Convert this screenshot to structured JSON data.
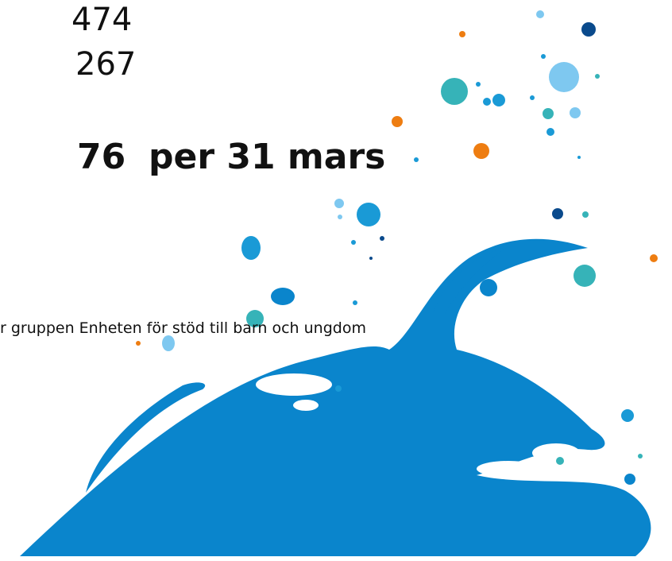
{
  "numbers": [
    "474",
    "267"
  ],
  "headline": {
    "value": "76",
    "text": "per 31 mars"
  },
  "caption": "r gruppen Enheten för stöd till barn och ungdom"
}
